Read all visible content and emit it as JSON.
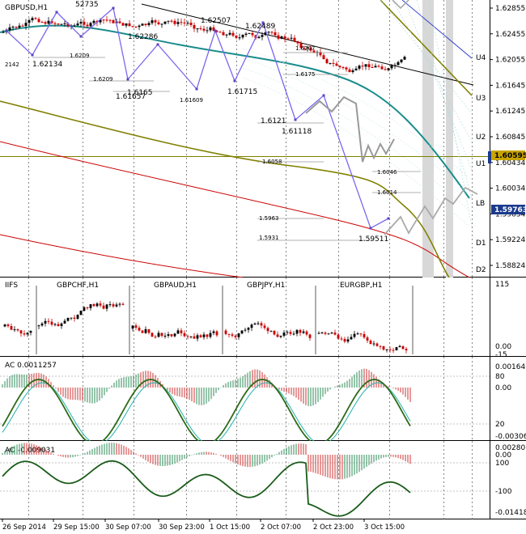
{
  "main_chart": {
    "title": "GBPUSD,H1",
    "price_ticks": [
      "1.62855",
      "1.62455",
      "1.62055",
      "1.61645",
      "1.61245",
      "1.60845",
      "1.60434",
      "1.60034",
      "1.59634",
      "1.59224",
      "1.58824"
    ],
    "current_price": "1.59763",
    "hline_price": "1.60595",
    "level_labels": [
      "U4",
      "U3",
      "U2",
      "U1",
      "LB",
      "D1",
      "D2"
    ],
    "swing_labels": [
      "52735",
      "1.62286",
      "1.62507",
      "1.62489",
      "1.62134",
      "1.6209",
      "1.6209",
      "1.6165",
      "1.61657",
      "1.61609",
      "1.61715",
      "1.6207",
      "1.6175",
      "1.6121",
      "1.61118",
      "1.6058",
      "1.6046",
      "1.6014",
      "1.5963",
      "1.5931",
      "1.59511",
      "2142"
    ],
    "colors": {
      "teal_ma": "#1a8c8c",
      "olive_ma": "#808000",
      "red_band": "#cc0000",
      "zigzag": "#7b68ee",
      "projection": "#999999",
      "bull_candle": "#000000",
      "bear_candle": "#cc0000"
    }
  },
  "currency_panel": {
    "label": "IIFS",
    "pairs": [
      "GBPCHF,H1",
      "GBPAUD,H1",
      "GBPJPY,H1",
      "EURGBP,H1"
    ],
    "scale_ticks": [
      "115",
      "0.00",
      "-15"
    ]
  },
  "ac_panel": {
    "label": "AC 0.0011257",
    "scale_ticks": [
      "0.001642",
      "80",
      "0.00",
      "20",
      "-0.003065"
    ]
  },
  "ao_panel": {
    "label": "AO -0.009031",
    "scale_ticks": [
      "0.002801",
      "0.00",
      "100",
      "-100",
      "-0.014188"
    ]
  },
  "time_axis": {
    "labels": [
      "26 Sep 2014",
      "29 Sep 15:00",
      "30 Sep 07:00",
      "30 Sep 23:00",
      "1 Oct 15:00",
      "2 Oct 07:00",
      "2 Oct 23:00",
      "3 Oct 15:00"
    ]
  }
}
